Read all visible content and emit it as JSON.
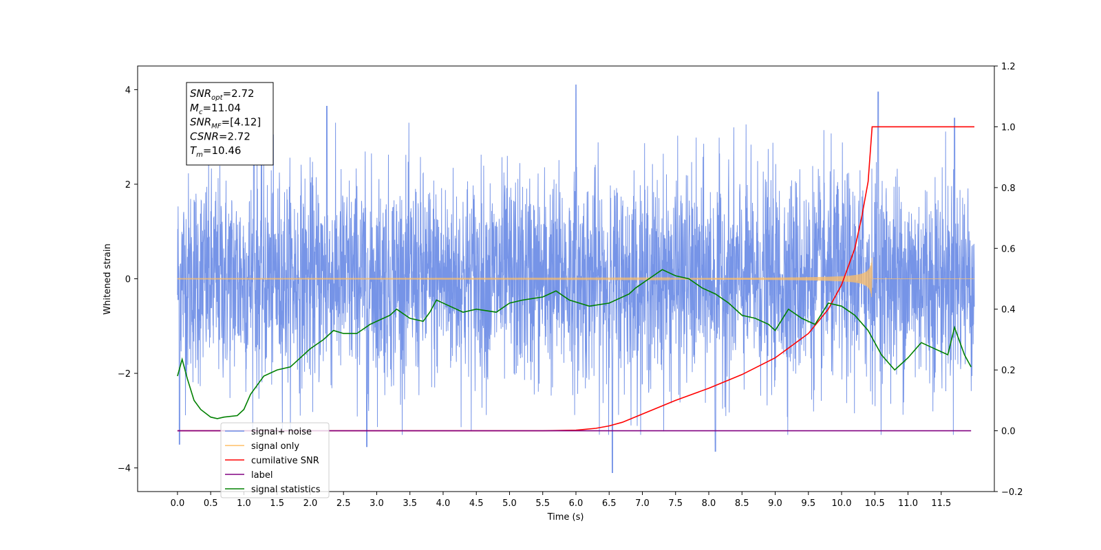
{
  "chart_data": {
    "type": "line",
    "title": "",
    "xlabel": "Time (s)",
    "ylabel_left": "Whitened strain",
    "ylabel_right": "",
    "xlim": [
      -0.6,
      12.3
    ],
    "ylim_left": [
      -4.5,
      4.5
    ],
    "ylim_right": [
      -0.2,
      1.2
    ],
    "x_ticks": [
      "0.0",
      "0.5",
      "1.0",
      "1.5",
      "2.0",
      "2.5",
      "3.0",
      "3.5",
      "4.0",
      "4.5",
      "5.0",
      "5.5",
      "6.0",
      "6.5",
      "7.0",
      "7.5",
      "8.0",
      "8.5",
      "9.0",
      "9.5",
      "10.0",
      "10.5",
      "11.0",
      "11.5"
    ],
    "y_ticks_left": [
      "4",
      "2",
      "0",
      "−2",
      "−4"
    ],
    "y_ticks_right": [
      "1.2",
      "1.0",
      "0.8",
      "0.6",
      "0.4",
      "0.2",
      "0.0",
      "−0.2"
    ],
    "grid": false,
    "legend_position": "lower-left",
    "annotation": {
      "lines": [
        {
          "base": "SNR",
          "sub": "opt",
          "value": "=2.72"
        },
        {
          "base": "M",
          "sub": "c",
          "value": "=11.04"
        },
        {
          "base": "SNR",
          "sub": "MF",
          "value": "=[4.12]"
        },
        {
          "base": "CSNR",
          "sub": "",
          "value": "=2.72"
        },
        {
          "base": "T",
          "sub": "m",
          "value": "=10.46"
        }
      ]
    },
    "series": [
      {
        "name": "signal+ noise",
        "axis": "left",
        "color": "#6f8ee6",
        "description_type": "noise",
        "x_range": [
          0.0,
          12.0
        ],
        "std": 1.1,
        "peaks": [
          [
            6.0,
            4.1
          ],
          [
            10.55,
            3.95
          ],
          [
            11.7,
            3.4
          ],
          [
            1.15,
            3.75
          ],
          [
            2.25,
            3.65
          ],
          [
            0.03,
            -3.5
          ],
          [
            6.55,
            -4.1
          ],
          [
            8.1,
            -3.65
          ],
          [
            2.85,
            -3.55
          ]
        ]
      },
      {
        "name": "signal only",
        "axis": "left",
        "color": "#ffbf66",
        "description_type": "chirp",
        "x_range": [
          0.0,
          12.0
        ],
        "merger_time": 10.46,
        "max_amplitude": 0.5
      },
      {
        "name": "cumilative SNR",
        "axis": "right",
        "color": "#ff0000",
        "x": [
          0.0,
          5.5,
          6.0,
          6.3,
          6.5,
          6.7,
          7.0,
          7.5,
          8.0,
          8.5,
          9.0,
          9.5,
          9.8,
          10.0,
          10.2,
          10.3,
          10.4,
          10.46,
          10.5,
          12.0
        ],
        "values": [
          0.0,
          0.0,
          0.002,
          0.008,
          0.016,
          0.028,
          0.055,
          0.1,
          0.14,
          0.185,
          0.24,
          0.32,
          0.4,
          0.48,
          0.6,
          0.7,
          0.82,
          1.0,
          1.0,
          1.0
        ]
      },
      {
        "name": "label",
        "axis": "right",
        "color": "#800080",
        "x": [
          0.0,
          11.95
        ],
        "values": [
          0.0,
          0.0
        ]
      },
      {
        "name": "signal statistics",
        "axis": "right",
        "color": "#008000",
        "x": [
          0.0,
          0.07,
          0.15,
          0.25,
          0.35,
          0.5,
          0.6,
          0.7,
          0.9,
          1.0,
          1.1,
          1.3,
          1.5,
          1.7,
          1.9,
          2.0,
          2.2,
          2.35,
          2.5,
          2.7,
          2.9,
          3.0,
          3.2,
          3.3,
          3.5,
          3.7,
          3.8,
          3.9,
          4.1,
          4.3,
          4.5,
          4.8,
          5.0,
          5.2,
          5.5,
          5.7,
          5.9,
          6.2,
          6.5,
          6.8,
          6.9,
          7.1,
          7.3,
          7.5,
          7.7,
          7.9,
          8.1,
          8.3,
          8.5,
          8.7,
          8.9,
          9.0,
          9.2,
          9.4,
          9.6,
          9.8,
          10.0,
          10.2,
          10.4,
          10.6,
          10.8,
          11.0,
          11.2,
          11.4,
          11.6,
          11.7,
          11.85,
          11.95
        ],
        "values": [
          0.18,
          0.235,
          0.17,
          0.1,
          0.07,
          0.045,
          0.04,
          0.045,
          0.05,
          0.07,
          0.12,
          0.18,
          0.2,
          0.21,
          0.25,
          0.27,
          0.3,
          0.33,
          0.32,
          0.32,
          0.35,
          0.36,
          0.38,
          0.4,
          0.37,
          0.36,
          0.39,
          0.43,
          0.41,
          0.39,
          0.4,
          0.39,
          0.42,
          0.43,
          0.44,
          0.46,
          0.43,
          0.41,
          0.42,
          0.45,
          0.47,
          0.5,
          0.53,
          0.51,
          0.5,
          0.47,
          0.45,
          0.42,
          0.38,
          0.37,
          0.35,
          0.33,
          0.4,
          0.37,
          0.35,
          0.42,
          0.41,
          0.38,
          0.33,
          0.25,
          0.2,
          0.24,
          0.29,
          0.27,
          0.25,
          0.34,
          0.25,
          0.21
        ]
      }
    ]
  }
}
